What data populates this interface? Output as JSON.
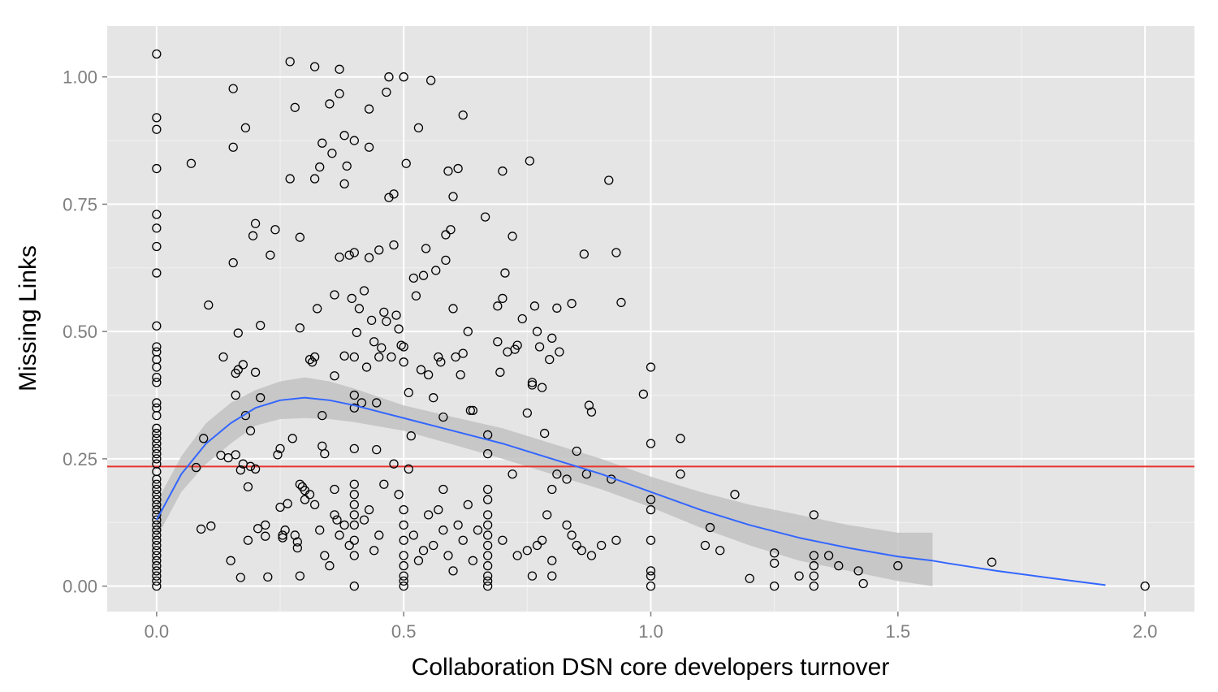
{
  "chart_data": {
    "type": "scatter",
    "xlabel": "Collaboration DSN core developers turnover",
    "ylabel": "Missing Links",
    "xlim": [
      -0.1,
      2.1
    ],
    "ylim": [
      -0.05,
      1.1
    ],
    "x_ticks": [
      0.0,
      0.5,
      1.0,
      1.5,
      2.0
    ],
    "x_tick_labels": [
      "0.0",
      "0.5",
      "1.0",
      "1.5",
      "2.0"
    ],
    "y_ticks": [
      0.0,
      0.25,
      0.5,
      0.75,
      1.0
    ],
    "y_tick_labels": [
      "0.00",
      "0.25",
      "0.50",
      "0.75",
      "1.00"
    ],
    "grid": true,
    "reference_line": {
      "y": 0.235,
      "color": "#e8352b"
    },
    "smooth": {
      "color": "#3366ff",
      "band_color": "#c2c2c2",
      "x": [
        0.0,
        0.05,
        0.1,
        0.15,
        0.2,
        0.25,
        0.3,
        0.35,
        0.4,
        0.5,
        0.6,
        0.7,
        0.8,
        0.9,
        1.0,
        1.1,
        1.2,
        1.3,
        1.4,
        1.5,
        1.57
      ],
      "y": [
        0.13,
        0.22,
        0.28,
        0.32,
        0.35,
        0.365,
        0.37,
        0.365,
        0.355,
        0.33,
        0.305,
        0.28,
        0.25,
        0.22,
        0.185,
        0.15,
        0.12,
        0.095,
        0.075,
        0.058,
        0.05
      ],
      "upper": [
        0.165,
        0.255,
        0.32,
        0.36,
        0.385,
        0.402,
        0.41,
        0.402,
        0.388,
        0.355,
        0.332,
        0.31,
        0.28,
        0.25,
        0.215,
        0.185,
        0.16,
        0.14,
        0.12,
        0.105,
        0.105
      ],
      "lower": [
        0.095,
        0.185,
        0.24,
        0.28,
        0.315,
        0.328,
        0.33,
        0.328,
        0.322,
        0.305,
        0.278,
        0.25,
        0.22,
        0.19,
        0.155,
        0.115,
        0.08,
        0.05,
        0.03,
        0.01,
        0.0
      ],
      "tail_x": [
        1.6,
        1.7,
        1.8,
        1.92
      ],
      "tail_y": [
        0.045,
        0.03,
        0.017,
        0.002
      ]
    },
    "points": [
      [
        0,
        1.045
      ],
      [
        0,
        0.92
      ],
      [
        0,
        0.897
      ],
      [
        0,
        0.82
      ],
      [
        0,
        0.73
      ],
      [
        0,
        0.703
      ],
      [
        0,
        0.667
      ],
      [
        0,
        0.615
      ],
      [
        0,
        0.511
      ],
      [
        0,
        0.47
      ],
      [
        0,
        0.46
      ],
      [
        0,
        0.445
      ],
      [
        0,
        0.43
      ],
      [
        0,
        0.41
      ],
      [
        0,
        0.4
      ],
      [
        0,
        0.36
      ],
      [
        0,
        0.35
      ],
      [
        0,
        0.335
      ],
      [
        0,
        0.31
      ],
      [
        0,
        0.3
      ],
      [
        0,
        0.29
      ],
      [
        0,
        0.28
      ],
      [
        0,
        0.27
      ],
      [
        0,
        0.26
      ],
      [
        0,
        0.25
      ],
      [
        0,
        0.24
      ],
      [
        0,
        0.225
      ],
      [
        0,
        0.21
      ],
      [
        0,
        0.2
      ],
      [
        0,
        0.19
      ],
      [
        0,
        0.18
      ],
      [
        0,
        0.17
      ],
      [
        0,
        0.16
      ],
      [
        0,
        0.15
      ],
      [
        0,
        0.14
      ],
      [
        0,
        0.13
      ],
      [
        0,
        0.12
      ],
      [
        0,
        0.11
      ],
      [
        0,
        0.1
      ],
      [
        0,
        0.09
      ],
      [
        0,
        0.08
      ],
      [
        0,
        0.07
      ],
      [
        0,
        0.06
      ],
      [
        0,
        0.05
      ],
      [
        0,
        0.04
      ],
      [
        0,
        0.03
      ],
      [
        0,
        0.02
      ],
      [
        0,
        0.01
      ],
      [
        0,
        0.0
      ],
      [
        0.07,
        0.83
      ],
      [
        0.08,
        0.233
      ],
      [
        0.09,
        0.112
      ],
      [
        0.095,
        0.29
      ],
      [
        0.105,
        0.552
      ],
      [
        0.11,
        0.118
      ],
      [
        0.13,
        0.257
      ],
      [
        0.135,
        0.45
      ],
      [
        0.145,
        0.252
      ],
      [
        0.15,
        0.05
      ],
      [
        0.155,
        0.977
      ],
      [
        0.155,
        0.862
      ],
      [
        0.155,
        0.635
      ],
      [
        0.16,
        0.418
      ],
      [
        0.16,
        0.375
      ],
      [
        0.16,
        0.258
      ],
      [
        0.165,
        0.497
      ],
      [
        0.165,
        0.425
      ],
      [
        0.17,
        0.017
      ],
      [
        0.17,
        0.228
      ],
      [
        0.175,
        0.435
      ],
      [
        0.175,
        0.24
      ],
      [
        0.18,
        0.9
      ],
      [
        0.18,
        0.335
      ],
      [
        0.185,
        0.195
      ],
      [
        0.185,
        0.09
      ],
      [
        0.19,
        0.305
      ],
      [
        0.19,
        0.235
      ],
      [
        0.195,
        0.688
      ],
      [
        0.2,
        0.712
      ],
      [
        0.2,
        0.42
      ],
      [
        0.2,
        0.23
      ],
      [
        0.205,
        0.113
      ],
      [
        0.21,
        0.512
      ],
      [
        0.21,
        0.37
      ],
      [
        0.22,
        0.098
      ],
      [
        0.22,
        0.12
      ],
      [
        0.225,
        0.018
      ],
      [
        0.23,
        0.65
      ],
      [
        0.24,
        0.7
      ],
      [
        0.245,
        0.258
      ],
      [
        0.25,
        0.27
      ],
      [
        0.25,
        0.155
      ],
      [
        0.255,
        0.1
      ],
      [
        0.255,
        0.095
      ],
      [
        0.26,
        0.11
      ],
      [
        0.265,
        0.162
      ],
      [
        0.27,
        1.03
      ],
      [
        0.27,
        0.8
      ],
      [
        0.275,
        0.29
      ],
      [
        0.28,
        0.94
      ],
      [
        0.28,
        0.1
      ],
      [
        0.285,
        0.087
      ],
      [
        0.285,
        0.075
      ],
      [
        0.29,
        0.685
      ],
      [
        0.29,
        0.507
      ],
      [
        0.29,
        0.2
      ],
      [
        0.29,
        0.02
      ],
      [
        0.295,
        0.195
      ],
      [
        0.3,
        0.188
      ],
      [
        0.31,
        0.445
      ],
      [
        0.315,
        0.44
      ],
      [
        0.32,
        1.02
      ],
      [
        0.32,
        0.8
      ],
      [
        0.32,
        0.45
      ],
      [
        0.325,
        0.545
      ],
      [
        0.33,
        0.823
      ],
      [
        0.335,
        0.87
      ],
      [
        0.335,
        0.335
      ],
      [
        0.335,
        0.275
      ],
      [
        0.34,
        0.26
      ],
      [
        0.35,
        0.947
      ],
      [
        0.355,
        0.85
      ],
      [
        0.36,
        0.572
      ],
      [
        0.36,
        0.413
      ],
      [
        0.36,
        0.19
      ],
      [
        0.365,
        0.13
      ],
      [
        0.37,
        1.015
      ],
      [
        0.37,
        0.967
      ],
      [
        0.37,
        0.646
      ],
      [
        0.38,
        0.885
      ],
      [
        0.38,
        0.79
      ],
      [
        0.38,
        0.452
      ],
      [
        0.385,
        0.825
      ],
      [
        0.39,
        0.65
      ],
      [
        0.395,
        0.565
      ],
      [
        0.4,
        0.875
      ],
      [
        0.4,
        0.655
      ],
      [
        0.4,
        0.45
      ],
      [
        0.4,
        0.375
      ],
      [
        0.4,
        0.35
      ],
      [
        0.4,
        0.27
      ],
      [
        0.405,
        0.498
      ],
      [
        0.41,
        0.545
      ],
      [
        0.415,
        0.36
      ],
      [
        0.42,
        0.58
      ],
      [
        0.425,
        0.43
      ],
      [
        0.43,
        0.937
      ],
      [
        0.43,
        0.862
      ],
      [
        0.43,
        0.645
      ],
      [
        0.435,
        0.522
      ],
      [
        0.44,
        0.48
      ],
      [
        0.445,
        0.36
      ],
      [
        0.445,
        0.268
      ],
      [
        0.45,
        0.66
      ],
      [
        0.45,
        0.45
      ],
      [
        0.455,
        0.468
      ],
      [
        0.46,
        0.538
      ],
      [
        0.465,
        0.97
      ],
      [
        0.465,
        0.52
      ],
      [
        0.47,
        1.0
      ],
      [
        0.47,
        0.763
      ],
      [
        0.475,
        0.45
      ],
      [
        0.48,
        0.77
      ],
      [
        0.48,
        0.67
      ],
      [
        0.485,
        0.532
      ],
      [
        0.49,
        0.505
      ],
      [
        0.495,
        0.473
      ],
      [
        0.5,
        1.0
      ],
      [
        0.5,
        0.47
      ],
      [
        0.5,
        0.44
      ],
      [
        0.505,
        0.83
      ],
      [
        0.51,
        0.38
      ],
      [
        0.515,
        0.295
      ],
      [
        0.52,
        0.605
      ],
      [
        0.525,
        0.57
      ],
      [
        0.53,
        0.9
      ],
      [
        0.535,
        0.425
      ],
      [
        0.54,
        0.61
      ],
      [
        0.545,
        0.663
      ],
      [
        0.55,
        0.415
      ],
      [
        0.555,
        0.993
      ],
      [
        0.56,
        0.37
      ],
      [
        0.565,
        0.62
      ],
      [
        0.57,
        0.45
      ],
      [
        0.575,
        0.44
      ],
      [
        0.58,
        0.332
      ],
      [
        0.585,
        0.69
      ],
      [
        0.585,
        0.64
      ],
      [
        0.59,
        0.815
      ],
      [
        0.595,
        0.7
      ],
      [
        0.6,
        0.765
      ],
      [
        0.6,
        0.545
      ],
      [
        0.605,
        0.45
      ],
      [
        0.61,
        0.82
      ],
      [
        0.615,
        0.415
      ],
      [
        0.62,
        0.925
      ],
      [
        0.62,
        0.457
      ],
      [
        0.63,
        0.5
      ],
      [
        0.635,
        0.345
      ],
      [
        0.64,
        0.345
      ],
      [
        0.665,
        0.725
      ],
      [
        0.67,
        0.297
      ],
      [
        0.67,
        0.26
      ],
      [
        0.69,
        0.55
      ],
      [
        0.69,
        0.48
      ],
      [
        0.695,
        0.42
      ],
      [
        0.7,
        0.815
      ],
      [
        0.7,
        0.565
      ],
      [
        0.705,
        0.615
      ],
      [
        0.71,
        0.46
      ],
      [
        0.72,
        0.687
      ],
      [
        0.725,
        0.465
      ],
      [
        0.73,
        0.473
      ],
      [
        0.74,
        0.525
      ],
      [
        0.75,
        0.34
      ],
      [
        0.755,
        0.835
      ],
      [
        0.76,
        0.4
      ],
      [
        0.76,
        0.395
      ],
      [
        0.765,
        0.55
      ],
      [
        0.77,
        0.5
      ],
      [
        0.775,
        0.47
      ],
      [
        0.78,
        0.39
      ],
      [
        0.785,
        0.3
      ],
      [
        0.795,
        0.445
      ],
      [
        0.8,
        0.487
      ],
      [
        0.81,
        0.546
      ],
      [
        0.815,
        0.46
      ],
      [
        0.83,
        0.21
      ],
      [
        0.84,
        0.555
      ],
      [
        0.85,
        0.265
      ],
      [
        0.865,
        0.652
      ],
      [
        0.875,
        0.355
      ],
      [
        0.88,
        0.342
      ],
      [
        0.915,
        0.797
      ],
      [
        0.93,
        0.655
      ],
      [
        0.94,
        0.557
      ],
      [
        0.985,
        0.377
      ],
      [
        1.0,
        0.43
      ],
      [
        1.0,
        0.28
      ],
      [
        1.06,
        0.29
      ],
      [
        0.3,
        0.17
      ],
      [
        0.31,
        0.18
      ],
      [
        0.32,
        0.16
      ],
      [
        0.33,
        0.11
      ],
      [
        0.34,
        0.06
      ],
      [
        0.35,
        0.04
      ],
      [
        0.36,
        0.14
      ],
      [
        0.37,
        0.1
      ],
      [
        0.38,
        0.12
      ],
      [
        0.39,
        0.08
      ],
      [
        0.4,
        0.2
      ],
      [
        0.4,
        0.18
      ],
      [
        0.4,
        0.16
      ],
      [
        0.4,
        0.14
      ],
      [
        0.4,
        0.12
      ],
      [
        0.4,
        0.09
      ],
      [
        0.4,
        0.06
      ],
      [
        0.4,
        0.0
      ],
      [
        0.42,
        0.13
      ],
      [
        0.43,
        0.15
      ],
      [
        0.44,
        0.07
      ],
      [
        0.45,
        0.1
      ],
      [
        0.46,
        0.2
      ],
      [
        0.48,
        0.24
      ],
      [
        0.49,
        0.18
      ],
      [
        0.5,
        0.15
      ],
      [
        0.5,
        0.12
      ],
      [
        0.5,
        0.09
      ],
      [
        0.5,
        0.06
      ],
      [
        0.5,
        0.04
      ],
      [
        0.5,
        0.02
      ],
      [
        0.5,
        0.01
      ],
      [
        0.5,
        0.0
      ],
      [
        0.51,
        0.23
      ],
      [
        0.52,
        0.1
      ],
      [
        0.53,
        0.05
      ],
      [
        0.54,
        0.07
      ],
      [
        0.55,
        0.14
      ],
      [
        0.56,
        0.08
      ],
      [
        0.57,
        0.15
      ],
      [
        0.58,
        0.19
      ],
      [
        0.58,
        0.11
      ],
      [
        0.59,
        0.06
      ],
      [
        0.6,
        0.03
      ],
      [
        0.61,
        0.12
      ],
      [
        0.62,
        0.09
      ],
      [
        0.63,
        0.16
      ],
      [
        0.64,
        0.05
      ],
      [
        0.65,
        0.11
      ],
      [
        0.67,
        0.19
      ],
      [
        0.67,
        0.17
      ],
      [
        0.67,
        0.14
      ],
      [
        0.67,
        0.12
      ],
      [
        0.67,
        0.1
      ],
      [
        0.67,
        0.08
      ],
      [
        0.67,
        0.06
      ],
      [
        0.67,
        0.04
      ],
      [
        0.67,
        0.02
      ],
      [
        0.67,
        0.01
      ],
      [
        0.67,
        0.0
      ],
      [
        0.7,
        0.09
      ],
      [
        0.72,
        0.22
      ],
      [
        0.73,
        0.06
      ],
      [
        0.75,
        0.07
      ],
      [
        0.76,
        0.02
      ],
      [
        0.77,
        0.08
      ],
      [
        0.78,
        0.09
      ],
      [
        0.79,
        0.14
      ],
      [
        0.8,
        0.19
      ],
      [
        0.8,
        0.05
      ],
      [
        0.8,
        0.02
      ],
      [
        0.81,
        0.22
      ],
      [
        0.83,
        0.12
      ],
      [
        0.84,
        0.1
      ],
      [
        0.85,
        0.08
      ],
      [
        0.86,
        0.07
      ],
      [
        0.87,
        0.22
      ],
      [
        0.88,
        0.06
      ],
      [
        0.9,
        0.08
      ],
      [
        0.92,
        0.21
      ],
      [
        0.93,
        0.09
      ],
      [
        1.0,
        0.17
      ],
      [
        1.0,
        0.15
      ],
      [
        1.0,
        0.09
      ],
      [
        1.0,
        0.03
      ],
      [
        1.0,
        0.02
      ],
      [
        1.0,
        0.0
      ],
      [
        1.06,
        0.22
      ],
      [
        1.11,
        0.08
      ],
      [
        1.12,
        0.115
      ],
      [
        1.14,
        0.07
      ],
      [
        1.17,
        0.18
      ],
      [
        1.2,
        0.015
      ],
      [
        1.25,
        0.065
      ],
      [
        1.25,
        0.045
      ],
      [
        1.25,
        0.0
      ],
      [
        1.3,
        0.02
      ],
      [
        1.33,
        0.14
      ],
      [
        1.33,
        0.06
      ],
      [
        1.33,
        0.04
      ],
      [
        1.33,
        0.02
      ],
      [
        1.33,
        0.0
      ],
      [
        1.36,
        0.06
      ],
      [
        1.38,
        0.04
      ],
      [
        1.42,
        0.03
      ],
      [
        1.43,
        0.005
      ],
      [
        1.5,
        0.04
      ],
      [
        1.69,
        0.047
      ],
      [
        2.0,
        0.0
      ]
    ]
  }
}
